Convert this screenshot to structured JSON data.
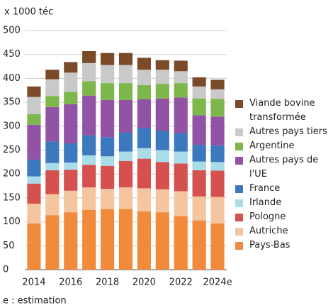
{
  "chart_data": {
    "type": "stacked-bar",
    "y_label": "x 1000 téc",
    "note": "e : estimation",
    "categories": [
      "2014",
      null,
      "2016",
      null,
      "2018",
      null,
      "2020",
      null,
      "2022",
      null,
      "2024e"
    ],
    "ylim": [
      0,
      500
    ],
    "yticks": [
      0,
      50,
      100,
      150,
      200,
      250,
      300,
      350,
      400,
      450,
      500
    ],
    "grid": true,
    "series": [
      {
        "name": "Pays-Bas",
        "color": "#f28a3c",
        "values": [
          97,
          114,
          120,
          125,
          127,
          127,
          122,
          120,
          112,
          103,
          97
        ]
      },
      {
        "name": "Autriche",
        "color": "#f5c59f",
        "values": [
          41,
          44,
          45,
          47,
          42,
          45,
          48,
          48,
          52,
          50,
          55
        ]
      },
      {
        "name": "Pologne",
        "color": "#d5514f",
        "values": [
          42,
          50,
          44,
          47,
          48,
          55,
          62,
          57,
          58,
          55,
          55
        ]
      },
      {
        "name": "Irlande",
        "color": "#a9dbe8",
        "values": [
          15,
          15,
          15,
          20,
          20,
          20,
          22,
          25,
          25,
          18,
          18
        ]
      },
      {
        "name": "France",
        "color": "#3b78bd",
        "values": [
          35,
          45,
          40,
          42,
          40,
          40,
          42,
          40,
          38,
          35,
          35
        ]
      },
      {
        "name": "Autres pays de l'UE",
        "color": "#9253a5",
        "values": [
          73,
          72,
          82,
          83,
          78,
          68,
          60,
          68,
          75,
          62,
          60
        ]
      },
      {
        "name": "Argentine",
        "color": "#7db64a",
        "values": [
          22,
          23,
          26,
          30,
          35,
          35,
          30,
          30,
          30,
          35,
          37
        ]
      },
      {
        "name": "Autres pays tiers",
        "color": "#c9c9c9",
        "values": [
          36,
          35,
          40,
          38,
          38,
          38,
          32,
          30,
          25,
          25,
          20
        ]
      },
      {
        "name": "Viande bovine transformée",
        "color": "#7b4a29",
        "values": [
          22,
          20,
          22,
          25,
          25,
          25,
          25,
          20,
          22,
          19,
          20
        ]
      }
    ]
  }
}
